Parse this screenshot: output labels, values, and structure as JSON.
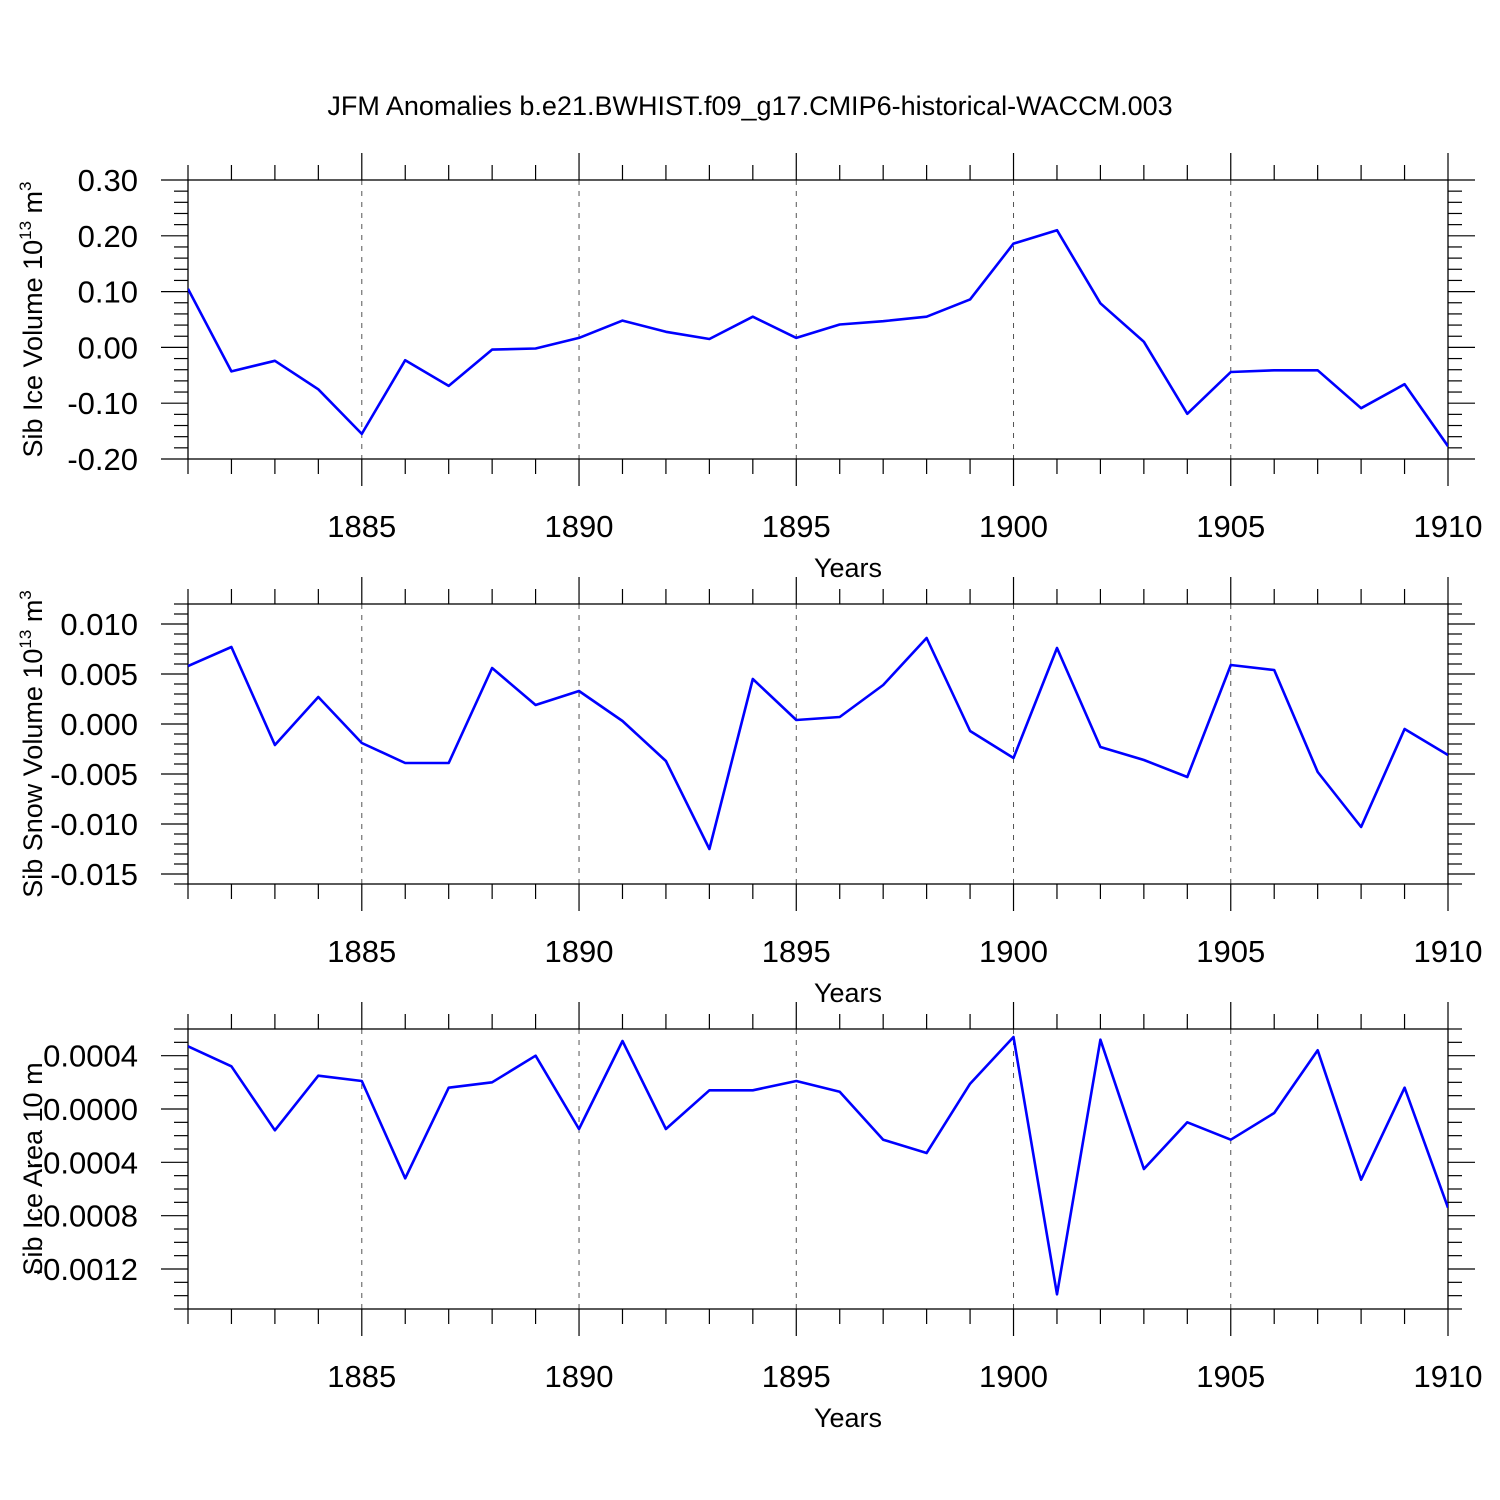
{
  "chart_data": {
    "title": "JFM Anomalies b.e21.BWHIST.f09_g17.CMIP6-historical-WACCM.003",
    "colors": {
      "series": "#0000ff",
      "axes": "#000000",
      "grid": "#555555"
    },
    "panels": [
      {
        "type": "line",
        "ylabel": "Sib Ice Volume 10",
        "ylabel_sup": "13",
        "ylabel_unit": "m",
        "ylabel_unit_sup": "3",
        "xlabel": "Years",
        "xlim": [
          1881,
          1910
        ],
        "ylim": [
          -0.2,
          0.3
        ],
        "yticks": [
          -0.2,
          -0.1,
          0.0,
          0.1,
          0.2,
          0.3
        ],
        "ytick_labels": [
          "-0.20",
          "-0.10",
          "0.00",
          "0.10",
          "0.20",
          "0.30"
        ],
        "yminor_step": 0.02,
        "xticks": [
          1885,
          1890,
          1895,
          1900,
          1905,
          1910
        ],
        "xtick_labels": [
          "1885",
          "1890",
          "1895",
          "1900",
          "1905",
          "1910"
        ],
        "grid": "dashed vertical at major x ticks",
        "x": [
          1881,
          1882,
          1883,
          1884,
          1885,
          1886,
          1887,
          1888,
          1889,
          1890,
          1891,
          1892,
          1893,
          1894,
          1895,
          1896,
          1897,
          1898,
          1899,
          1900,
          1901,
          1902,
          1903,
          1904,
          1905,
          1906,
          1907,
          1908,
          1909,
          1910
        ],
        "values": [
          0.105,
          -0.043,
          -0.024,
          -0.075,
          -0.155,
          -0.023,
          -0.069,
          -0.004,
          -0.002,
          0.017,
          0.048,
          0.028,
          0.015,
          0.055,
          0.017,
          0.041,
          0.047,
          0.055,
          0.086,
          0.186,
          0.21,
          0.079,
          0.01,
          -0.119,
          -0.044,
          -0.041,
          -0.041,
          -0.109,
          -0.066,
          -0.177
        ]
      },
      {
        "type": "line",
        "ylabel": "Sib Snow Volume 10",
        "ylabel_sup": "13",
        "ylabel_unit": "m",
        "ylabel_unit_sup": "3",
        "xlabel": "Years",
        "xlim": [
          1881,
          1910
        ],
        "ylim": [
          -0.016,
          0.012
        ],
        "yticks": [
          -0.015,
          -0.01,
          -0.005,
          0.0,
          0.005,
          0.01
        ],
        "ytick_labels": [
          "-0.015",
          "-0.010",
          "-0.005",
          "0.000",
          "0.005",
          "0.010"
        ],
        "yminor_step": 0.001,
        "xticks": [
          1885,
          1890,
          1895,
          1900,
          1905,
          1910
        ],
        "xtick_labels": [
          "1885",
          "1890",
          "1895",
          "1900",
          "1905",
          "1910"
        ],
        "grid": "dashed vertical at major x ticks",
        "x": [
          1881,
          1882,
          1883,
          1884,
          1885,
          1886,
          1887,
          1888,
          1889,
          1890,
          1891,
          1892,
          1893,
          1894,
          1895,
          1896,
          1897,
          1898,
          1899,
          1900,
          1901,
          1902,
          1903,
          1904,
          1905,
          1906,
          1907,
          1908,
          1909,
          1910
        ],
        "values": [
          0.0058,
          0.0077,
          -0.0021,
          0.0027,
          -0.0019,
          -0.0039,
          -0.0039,
          0.0056,
          0.0019,
          0.0033,
          0.0003,
          -0.0037,
          -0.0125,
          0.0045,
          0.0004,
          0.0007,
          0.0039,
          0.0086,
          -0.0007,
          -0.0034,
          0.0076,
          -0.0023,
          -0.0036,
          -0.0053,
          0.0059,
          0.0054,
          -0.0048,
          -0.0103,
          -0.0005,
          -0.0031
        ]
      },
      {
        "type": "line",
        "ylabel": "Sib Ice Area 10",
        "ylabel_sup": "",
        "ylabel_unit": "m",
        "ylabel_unit_sup": "",
        "xlabel": "Years",
        "xlim": [
          1881,
          1910
        ],
        "ylim": [
          -0.0015,
          0.0006
        ],
        "yticks": [
          -0.0012,
          -0.0008,
          -0.0004,
          0.0,
          0.0004
        ],
        "ytick_labels": [
          "-0.0012",
          "-0.0008",
          "-0.0004",
          "0.0000",
          "0.0004"
        ],
        "yminor_step": 0.0001,
        "xticks": [
          1885,
          1890,
          1895,
          1900,
          1905,
          1910
        ],
        "xtick_labels": [
          "1885",
          "1890",
          "1895",
          "1900",
          "1905",
          "1910"
        ],
        "grid": "dashed vertical at major x ticks",
        "x": [
          1881,
          1882,
          1883,
          1884,
          1885,
          1886,
          1887,
          1888,
          1889,
          1890,
          1891,
          1892,
          1893,
          1894,
          1895,
          1896,
          1897,
          1898,
          1899,
          1900,
          1901,
          1902,
          1903,
          1904,
          1905,
          1906,
          1907,
          1908,
          1909,
          1910
        ],
        "values": [
          0.00047,
          0.00032,
          -0.00016,
          0.00025,
          0.00021,
          -0.00052,
          0.00016,
          0.0002,
          0.0004,
          -0.00015,
          0.00051,
          -0.00015,
          0.00014,
          0.00014,
          0.00021,
          0.00013,
          -0.00023,
          -0.00033,
          0.00019,
          0.00054,
          -0.00139,
          0.00052,
          -0.00045,
          -0.0001,
          -0.00023,
          -3e-05,
          0.00044,
          -0.00053,
          0.00016,
          -0.00074
        ]
      }
    ]
  }
}
